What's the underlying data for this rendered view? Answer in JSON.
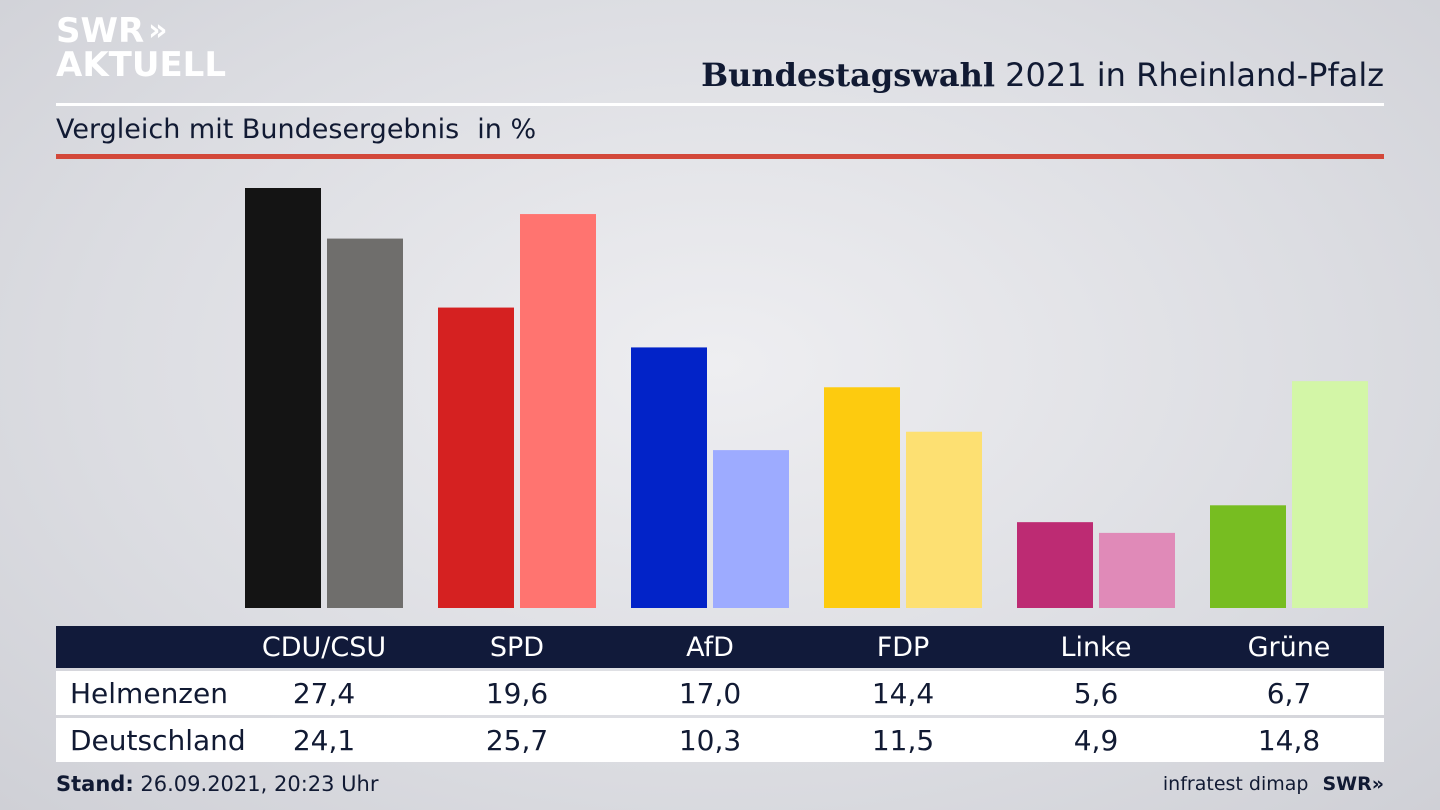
{
  "logo": {
    "line1": "SWR",
    "chevrons": "»",
    "line2": "AKTUELL"
  },
  "header": {
    "title_bold": "Bundestagswahl",
    "title_rest": " 2021 in Rheinland-Pfalz",
    "subtitle": "Vergleich mit Bundesergebnis",
    "unit": "in %"
  },
  "footer": {
    "stand_label": "Stand:",
    "stand_value": " 26.09.2021, 20:23 Uhr",
    "source": "infratest dimap",
    "brand": "SWR»"
  },
  "colors": {
    "navy": "#111a3a",
    "accent_red": "#d3483a"
  },
  "chart_data": {
    "type": "bar",
    "categories": [
      "CDU/CSU",
      "SPD",
      "AfD",
      "FDP",
      "Linke",
      "Grüne"
    ],
    "series": [
      {
        "name": "Helmenzen",
        "values": [
          27.4,
          19.6,
          17.0,
          14.4,
          5.6,
          6.7
        ],
        "display": [
          "27,4",
          "19,6",
          "17,0",
          "14,4",
          "5,6",
          "6,7"
        ]
      },
      {
        "name": "Deutschland",
        "values": [
          24.1,
          25.7,
          10.3,
          11.5,
          4.9,
          14.8
        ],
        "display": [
          "24,1",
          "25,7",
          "10,3",
          "11,5",
          "4,9",
          "14,8"
        ]
      }
    ],
    "colors_primary": [
      "#141414",
      "#d52121",
      "#0223c8",
      "#fdcb0f",
      "#bd2b73",
      "#77bd21"
    ],
    "colors_secondary": [
      "#6f6e6c",
      "#ff7470",
      "#9dabff",
      "#fde072",
      "#e08ab8",
      "#d3f6a7"
    ],
    "ylim": [
      0,
      27.4
    ],
    "grid": false,
    "legend": "table-below"
  }
}
